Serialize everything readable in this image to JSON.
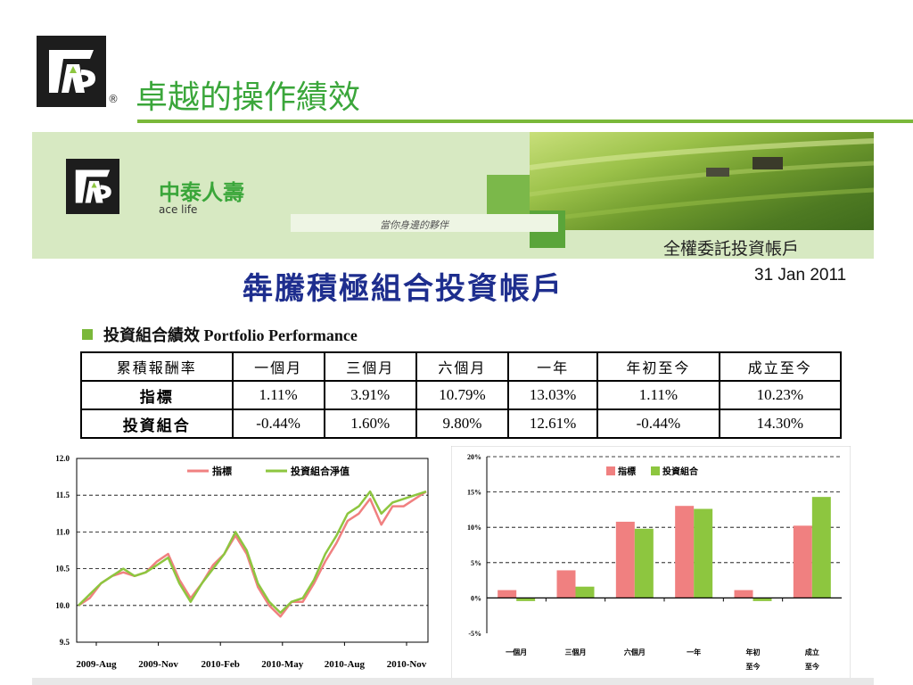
{
  "slide": {
    "title": "卓越的操作績效",
    "logo_icon": "ace-logo-icon",
    "registered_mark": "®"
  },
  "banner": {
    "brand_cn": "中泰人壽",
    "brand_en": "ace life",
    "slogan": "當你身邊的夥伴",
    "caption": "全權委託投資帳戶"
  },
  "document": {
    "title": "犇騰積極組合投資帳戶",
    "date": "31 Jan 2011",
    "section_heading": "投資組合績效 Portfolio Performance"
  },
  "table": {
    "headers": [
      "累積報酬率",
      "一個月",
      "三個月",
      "六個月",
      "一年",
      "年初至今",
      "成立至今"
    ],
    "rows": [
      {
        "label": "指標",
        "values": [
          "1.11%",
          "3.91%",
          "10.79%",
          "13.03%",
          "1.11%",
          "10.23%"
        ]
      },
      {
        "label": "投資組合",
        "values": [
          "-0.44%",
          "1.60%",
          "9.80%",
          "12.61%",
          "-0.44%",
          "14.30%"
        ]
      }
    ]
  },
  "colors": {
    "benchmark": "#f08080",
    "portfolio": "#8dc63f",
    "title_green": "#3aa63a",
    "title_blue": "#1e2e8e"
  },
  "chart_data": [
    {
      "type": "line",
      "legend_placement": "top",
      "ylim": [
        9.5,
        12.0
      ],
      "yticks": [
        "12.0",
        "11.5",
        "11.0",
        "10.5",
        "10.0",
        "9.5"
      ],
      "xticks": [
        "2009-Aug",
        "2009-Nov",
        "2010-Feb",
        "2010-May",
        "2010-Aug",
        "2010-Nov"
      ],
      "grid": "dashed-horizontal",
      "series": [
        {
          "name": "指標",
          "values": [
            10.0,
            10.1,
            10.3,
            10.4,
            10.45,
            10.4,
            10.45,
            10.6,
            10.7,
            10.35,
            10.1,
            10.3,
            10.55,
            10.7,
            10.95,
            10.7,
            10.25,
            10.0,
            9.85,
            10.05,
            10.05,
            10.3,
            10.6,
            10.85,
            11.15,
            11.25,
            11.45,
            11.1,
            11.35,
            11.35,
            11.45,
            11.55
          ]
        },
        {
          "name": "投資組合淨值",
          "values": [
            10.0,
            10.15,
            10.3,
            10.4,
            10.5,
            10.4,
            10.45,
            10.55,
            10.65,
            10.3,
            10.05,
            10.3,
            10.5,
            10.7,
            11.0,
            10.75,
            10.3,
            10.05,
            9.9,
            10.05,
            10.1,
            10.35,
            10.7,
            10.95,
            11.25,
            11.35,
            11.55,
            11.25,
            11.4,
            11.45,
            11.5,
            11.55
          ]
        }
      ]
    },
    {
      "type": "bar",
      "legend_placement": "top",
      "ylim": [
        -5,
        20
      ],
      "yticks": [
        "20%",
        "15%",
        "10%",
        "5%",
        "0%",
        "-5%"
      ],
      "grid": "dashed-horizontal",
      "categories": [
        {
          "line1": "一個月",
          "line2": ""
        },
        {
          "line1": "三個月",
          "line2": ""
        },
        {
          "line1": "六個月",
          "line2": ""
        },
        {
          "line1": "一年",
          "line2": ""
        },
        {
          "line1": "年初",
          "line2": "至今"
        },
        {
          "line1": "成立",
          "line2": "至今"
        }
      ],
      "series": [
        {
          "name": "指標",
          "values": [
            1.11,
            3.91,
            10.79,
            13.03,
            1.11,
            10.23
          ]
        },
        {
          "name": "投資組合",
          "values": [
            -0.44,
            1.6,
            9.8,
            12.61,
            -0.44,
            14.3
          ]
        }
      ]
    }
  ]
}
